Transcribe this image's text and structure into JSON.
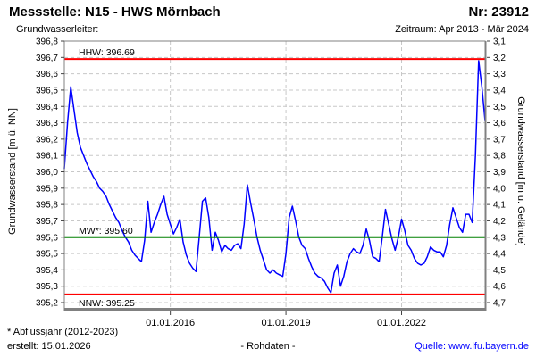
{
  "header": {
    "title": "Messstelle: N15 - HWS Mörnbach",
    "number": "Nr: 23912",
    "subtitle_left": "Grundwasserleiter:",
    "subtitle_right": "Zeitraum: Apr 2013 - Mär 2024"
  },
  "footer": {
    "footnote": "* Abflussjahr (2012-2023)",
    "created": "erstellt: 15.01.2026",
    "center": "- Rohdaten -",
    "source": "Quelle: www.lfu.bayern.de"
  },
  "colors": {
    "series": "#0000ff",
    "extreme_line": "#ff0000",
    "mean_line": "#008000",
    "grid": "#c8c8c8",
    "axis_border": "#808080",
    "tick": "#404040",
    "text": "#000000",
    "link": "#0000ff"
  },
  "chart_data": {
    "type": "line",
    "title": "",
    "ylabel_left": "Grundwasserstand [m ü. NN]",
    "ylabel_right": "Grundwasserstand [m u. Gelände]",
    "ylim_left": [
      395.2,
      396.8
    ],
    "ylim_right": [
      4.7,
      3.1
    ],
    "grid": true,
    "y_ticks_left": [
      "396,8",
      "396,7",
      "396,6",
      "396,5",
      "396,4",
      "396,3",
      "396,2",
      "396,1",
      "396,0",
      "395,9",
      "395,8",
      "395,7",
      "395,6",
      "395,5",
      "395,4",
      "395,3",
      "395,2"
    ],
    "y_ticks_right": [
      "3,1",
      "3,2",
      "3,3",
      "3,4",
      "3,5",
      "3,6",
      "3,7",
      "3,8",
      "3,9",
      "4,0",
      "4,1",
      "4,2",
      "4,3",
      "4,4",
      "4,5",
      "4,6",
      "4,7"
    ],
    "x_ticks": [
      {
        "label": "01.01.2016",
        "month_index": 33
      },
      {
        "label": "01.01.2019",
        "month_index": 69
      },
      {
        "label": "01.01.2022",
        "month_index": 105
      }
    ],
    "reference_lines": [
      {
        "id": "hhw",
        "label": "HHW: 396.69",
        "value": 396.69,
        "color": "#ff0000",
        "label_position": "above"
      },
      {
        "id": "mw",
        "label": "MW*: 395.60",
        "value": 395.6,
        "color": "#008000",
        "label_position": "above"
      },
      {
        "id": "nnw",
        "label": "NNW: 395.25",
        "value": 395.25,
        "color": "#ff0000",
        "label_position": "below"
      }
    ],
    "series": [
      {
        "name": "Grundwasserstand Rohdaten",
        "color": "#0000ff",
        "x_start": "2013-04",
        "x_end": "2024-03",
        "interval": "monthly",
        "values": [
          396.02,
          396.3,
          396.52,
          396.38,
          396.24,
          396.15,
          396.1,
          396.05,
          396.01,
          395.97,
          395.94,
          395.9,
          395.88,
          395.85,
          395.8,
          395.76,
          395.72,
          395.69,
          395.64,
          395.6,
          395.57,
          395.52,
          395.49,
          395.47,
          395.45,
          395.58,
          395.82,
          395.63,
          395.69,
          395.74,
          395.8,
          395.85,
          395.74,
          395.68,
          395.62,
          395.66,
          395.71,
          395.57,
          395.49,
          395.44,
          395.41,
          395.39,
          395.6,
          395.82,
          395.84,
          395.72,
          395.52,
          395.63,
          395.58,
          395.51,
          395.55,
          395.53,
          395.52,
          395.55,
          395.56,
          395.53,
          395.68,
          395.92,
          395.81,
          395.71,
          395.6,
          395.52,
          395.46,
          395.4,
          395.38,
          395.4,
          395.38,
          395.37,
          395.36,
          395.5,
          395.72,
          395.79,
          395.7,
          395.6,
          395.55,
          395.53,
          395.47,
          395.42,
          395.38,
          395.36,
          395.35,
          395.33,
          395.29,
          395.26,
          395.38,
          395.43,
          395.3,
          395.36,
          395.45,
          395.5,
          395.53,
          395.51,
          395.5,
          395.55,
          395.65,
          395.58,
          395.48,
          395.47,
          395.45,
          395.6,
          395.77,
          395.68,
          395.59,
          395.52,
          395.6,
          395.71,
          395.64,
          395.55,
          395.52,
          395.47,
          395.44,
          395.43,
          395.44,
          395.48,
          395.54,
          395.52,
          395.51,
          395.51,
          395.48,
          395.55,
          395.68,
          395.78,
          395.72,
          395.66,
          395.63,
          395.74,
          395.74,
          395.69,
          396.1,
          396.68,
          396.52,
          396.31
        ]
      }
    ]
  }
}
